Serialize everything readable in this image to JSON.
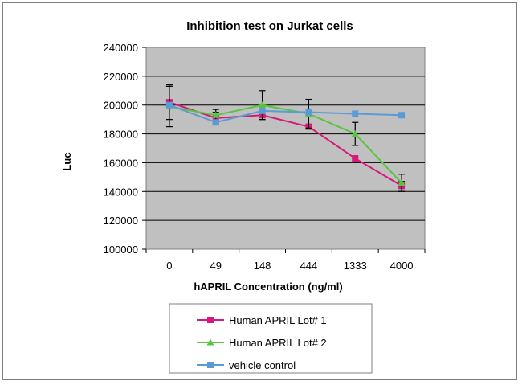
{
  "chart_data": {
    "type": "line",
    "title": "Inhibition test on Jurkat cells",
    "xlabel": "hAPRIL Concentration (ng/ml)",
    "ylabel": "Luc",
    "categories": [
      "0",
      "49",
      "148",
      "444",
      "1333",
      "4000"
    ],
    "ylim": [
      100000,
      240000
    ],
    "yticks": [
      100000,
      120000,
      140000,
      160000,
      180000,
      200000,
      220000,
      240000
    ],
    "grid": true,
    "legend_position": "bottom",
    "series": [
      {
        "name": "Human APRIL Lot# 1",
        "color": "#d6197a",
        "marker": "square",
        "values": [
          202000,
          191000,
          193000,
          185000,
          163000,
          144000
        ],
        "errors": [
          12000,
          4000,
          3000,
          null,
          null,
          3000
        ]
      },
      {
        "name": "Human APRIL Lot# 2",
        "color": "#59c43f",
        "marker": "triangle",
        "values": [
          199000,
          193000,
          200000,
          194000,
          180000,
          146000
        ],
        "errors": [
          14000,
          4000,
          10000,
          10000,
          8000,
          6000
        ]
      },
      {
        "name": "vehicle control",
        "color": "#5b9bd5",
        "marker": "square",
        "values": [
          200000,
          188000,
          196000,
          195000,
          194000,
          193000
        ],
        "errors": [
          null,
          null,
          null,
          null,
          null,
          null
        ]
      }
    ]
  }
}
